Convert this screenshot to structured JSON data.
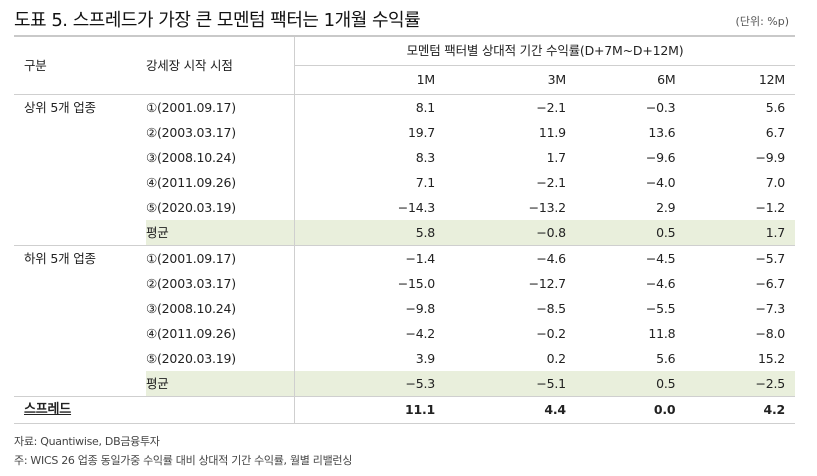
{
  "header": {
    "title": "도표 5. 스프레드가 가장 큰 모멘텀 팩터는 1개월 수익률",
    "unit": "(단위: %p)"
  },
  "table": {
    "col_group": "구분",
    "col_date": "강세장 시작 시점",
    "col_span_header": "모멘텀 팩터별 상대적 기간 수익률(D+7M~D+12M)",
    "columns": [
      "1M",
      "3M",
      "6M",
      "12M"
    ],
    "sections": [
      {
        "label": "상위 5개 업종",
        "rows": [
          {
            "date": "①(2001.09.17)",
            "values": [
              "8.1",
              "−2.1",
              "−0.3",
              "5.6"
            ]
          },
          {
            "date": "②(2003.03.17)",
            "values": [
              "19.7",
              "11.9",
              "13.6",
              "6.7"
            ]
          },
          {
            "date": "③(2008.10.24)",
            "values": [
              "8.3",
              "1.7",
              "−9.6",
              "−9.9"
            ]
          },
          {
            "date": "④(2011.09.26)",
            "values": [
              "7.1",
              "−2.1",
              "−4.0",
              "7.0"
            ]
          },
          {
            "date": "⑤(2020.03.19)",
            "values": [
              "−14.3",
              "−13.2",
              "2.9",
              "−1.2"
            ]
          }
        ],
        "average": {
          "label": "평균",
          "values": [
            "5.8",
            "−0.8",
            "0.5",
            "1.7"
          ]
        }
      },
      {
        "label": "하위 5개 업종",
        "rows": [
          {
            "date": "①(2001.09.17)",
            "values": [
              "−1.4",
              "−4.6",
              "−4.5",
              "−5.7"
            ]
          },
          {
            "date": "②(2003.03.17)",
            "values": [
              "−15.0",
              "−12.7",
              "−4.6",
              "−6.7"
            ]
          },
          {
            "date": "③(2008.10.24)",
            "values": [
              "−9.8",
              "−8.5",
              "−5.5",
              "−7.3"
            ]
          },
          {
            "date": "④(2011.09.26)",
            "values": [
              "−4.2",
              "−0.2",
              "11.8",
              "−8.0"
            ]
          },
          {
            "date": "⑤(2020.03.19)",
            "values": [
              "3.9",
              "0.2",
              "5.6",
              "15.2"
            ]
          }
        ],
        "average": {
          "label": "평균",
          "values": [
            "−5.3",
            "−5.1",
            "0.5",
            "−2.5"
          ]
        }
      }
    ],
    "spread": {
      "label": "스프레드",
      "values": [
        "11.1",
        "4.4",
        "0.0",
        "4.2"
      ]
    }
  },
  "footer": {
    "source": "자료: Quantiwise, DB금융투자",
    "note": "주: WICS 26 업종 동일가중 수익률 대비 상대적 기간 수익률, 월별 리밸런싱"
  },
  "colors": {
    "average_row_bg": "#e9efdc",
    "border": "#cfcfcf"
  }
}
